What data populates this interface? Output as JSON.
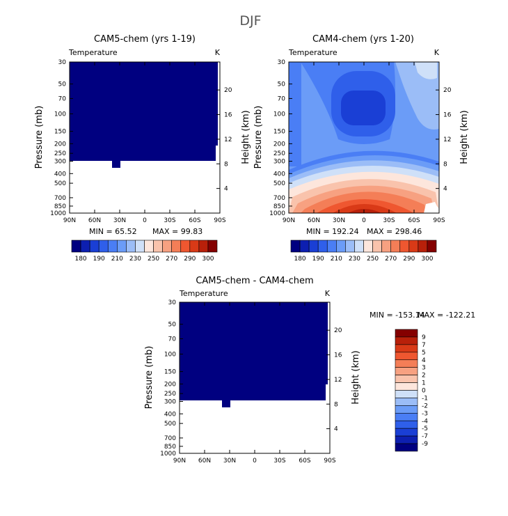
{
  "figure": {
    "title": "DJF"
  },
  "colors": {
    "levels": [
      "#000080",
      "#0d1fb0",
      "#1a3fd5",
      "#2f5fea",
      "#4a7ef5",
      "#6b9cf7",
      "#9bbdf7",
      "#cfe0f8",
      "#fde6dc",
      "#f9c3ac",
      "#f7a181",
      "#f47e57",
      "#ef5730",
      "#d93a17",
      "#b8200a",
      "#840000"
    ]
  },
  "chart_data": [
    {
      "type": "heatmap",
      "title": "CAM5-chem (yrs 1-19)",
      "subtitle_left": "Temperature",
      "subtitle_right": "K",
      "ylabel": "Pressure (mb)",
      "ylabel_right": "Height (km)",
      "x_ticks": [
        "90N",
        "60N",
        "30N",
        "0",
        "30S",
        "60S",
        "90S"
      ],
      "y_ticks": [
        "30",
        "50",
        "70",
        "100",
        "150",
        "200",
        "250",
        "300",
        "400",
        "500",
        "700",
        "850",
        "1000"
      ],
      "y_ticks_right": [
        "20",
        "16",
        "12",
        "8",
        "4"
      ],
      "ylim": [
        1000,
        30
      ],
      "xlim": [
        90,
        -90
      ],
      "min_label": "MIN =  65.52",
      "max_label": "MAX =  99.83",
      "field": "uniform deep blue (below 180 K) from 30 mb down to ~300 mb, blank below",
      "colorbar_labels": [
        "180",
        "190",
        "210",
        "230",
        "250",
        "270",
        "290",
        "300"
      ]
    },
    {
      "type": "heatmap",
      "title": "CAM4-chem (yrs 1-20)",
      "subtitle_left": "Temperature",
      "subtitle_right": "K",
      "ylabel": "Pressure (mb)",
      "ylabel_right": "Height (km)",
      "x_ticks": [
        "90N",
        "60N",
        "30N",
        "0",
        "30S",
        "60S",
        "90S"
      ],
      "y_ticks": [
        "30",
        "50",
        "70",
        "100",
        "150",
        "200",
        "250",
        "300",
        "400",
        "500",
        "700",
        "850",
        "1000"
      ],
      "y_ticks_right": [
        "20",
        "16",
        "12",
        "8",
        "4"
      ],
      "ylim": [
        1000,
        30
      ],
      "xlim": [
        90,
        -90
      ],
      "min_label": "MIN = 192.24",
      "max_label": "MAX = 298.46",
      "field": "cold tropical tropopause (~195 K) near 100 mb at equator, warm (~295 K) tropical surface",
      "colorbar_labels": [
        "180",
        "190",
        "210",
        "230",
        "250",
        "270",
        "290",
        "300"
      ]
    },
    {
      "type": "heatmap",
      "title": "CAM5-chem - CAM4-chem",
      "subtitle_left": "Temperature",
      "subtitle_right": "K",
      "ylabel": "Pressure (mb)",
      "ylabel_right": "Height (km)",
      "x_ticks": [
        "90N",
        "60N",
        "30N",
        "0",
        "30S",
        "60S",
        "90S"
      ],
      "y_ticks": [
        "30",
        "50",
        "70",
        "100",
        "150",
        "200",
        "250",
        "300",
        "400",
        "500",
        "700",
        "850",
        "1000"
      ],
      "y_ticks_right": [
        "20",
        "16",
        "12",
        "8",
        "4"
      ],
      "ylim": [
        1000,
        30
      ],
      "xlim": [
        90,
        -90
      ],
      "min_label": "MIN = -153.14",
      "max_label": "MAX = -122.21",
      "field": "uniform darkest blue (below -9) from 30 mb down to ~300 mb, blank below",
      "colorbar_labels": [
        "9",
        "7",
        "5",
        "4",
        "3",
        "2",
        "1",
        "0",
        "-1",
        "-2",
        "-3",
        "-4",
        "-5",
        "-7",
        "-9"
      ]
    }
  ]
}
